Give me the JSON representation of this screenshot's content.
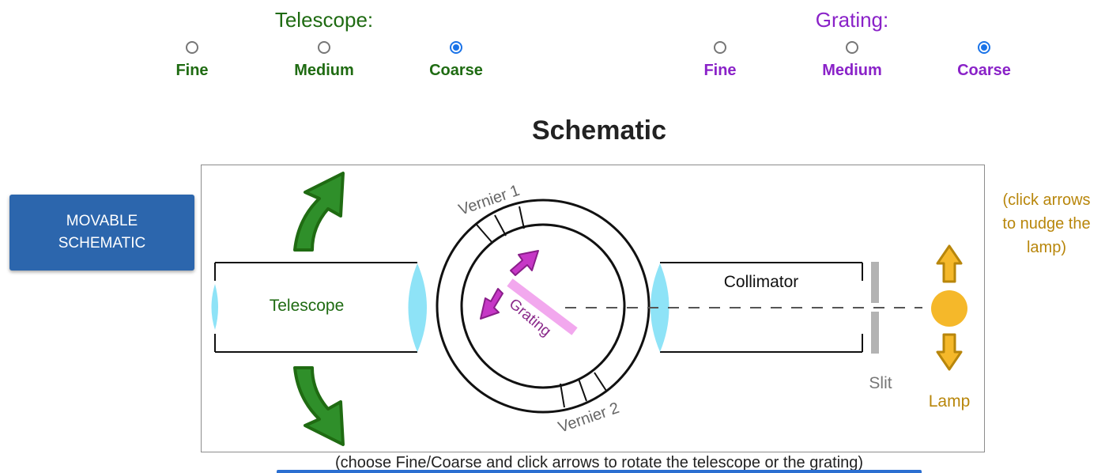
{
  "telescope": {
    "title": "Telescope:",
    "options": [
      {
        "label": "Fine",
        "checked": false
      },
      {
        "label": "Medium",
        "checked": false
      },
      {
        "label": "Coarse",
        "checked": true
      }
    ]
  },
  "grating": {
    "title": "Grating:",
    "options": [
      {
        "label": "Fine",
        "checked": false
      },
      {
        "label": "Medium",
        "checked": false
      },
      {
        "label": "Coarse",
        "checked": true
      }
    ]
  },
  "schematic": {
    "title": "Schematic",
    "movable_button": "MOVABLE SCHEMATIC",
    "labels": {
      "telescope": "Telescope",
      "collimator": "Collimator",
      "vernier1": "Vernier 1",
      "vernier2": "Vernier 2",
      "grating": "Grating",
      "slit": "Slit",
      "lamp": "Lamp"
    },
    "lamp_hint": "(click arrows to nudge the lamp)",
    "footer": "(choose Fine/Coarse and click arrows to rotate the telescope or the grating)"
  },
  "colors": {
    "telescope_green": "#1f6b12",
    "grating_purple": "#8a22c8",
    "lamp_gold": "#f5b82a",
    "lens_blue": "#8ee3f7",
    "button_blue": "#2c66ad"
  },
  "icons": {
    "telescope_up": "green-curved-arrow-up-icon",
    "telescope_down": "green-curved-arrow-down-icon",
    "grating_ccw": "magenta-arrow-icon",
    "lamp_up": "gold-arrow-up-icon",
    "lamp_down": "gold-arrow-down-icon"
  }
}
